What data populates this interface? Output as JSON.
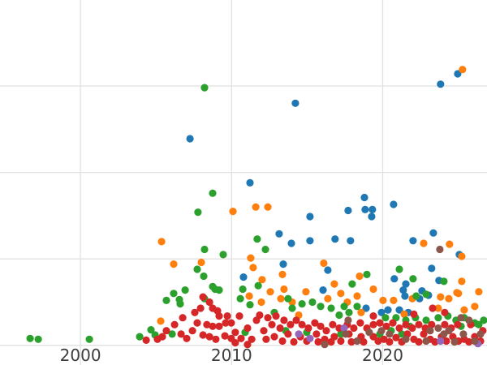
{
  "figure": {
    "background_color": "#ffffff",
    "gridline_color": "#e1e1e1",
    "tick_label_color": "#3d3d3d"
  },
  "chart_data": {
    "type": "scatter",
    "title": "",
    "xlabel": "",
    "ylabel": "",
    "x_ticks": [
      2000,
      2010,
      2020
    ],
    "x_tick_labels": [
      "2000",
      "2010",
      "2020"
    ],
    "y_ticks": [
      0,
      1,
      2,
      3
    ],
    "y_tick_labels": [],
    "y_axis_note": "y tick labels not visible (cropped outside view); values in gridline units",
    "xlim": [
      1994.68,
      2026.9
    ],
    "ylim": [
      -0.227,
      3.994
    ],
    "grid": true,
    "legend_position": "none",
    "marker_radius_px": 4.6,
    "series": [
      {
        "name": "series-blue",
        "color": "#1f77b4",
        "points": [
          [
            2007.25,
            2.39
          ],
          [
            2014.22,
            2.8
          ],
          [
            2023.83,
            3.02
          ],
          [
            2024.96,
            3.14
          ],
          [
            2011.22,
            1.88
          ],
          [
            2015.19,
            1.49
          ],
          [
            2013.15,
            1.29
          ],
          [
            2018.79,
            1.71
          ],
          [
            2017.71,
            1.56
          ],
          [
            2018.84,
            1.57
          ],
          [
            2019.32,
            1.57
          ],
          [
            2019.27,
            1.49
          ],
          [
            2020.72,
            1.63
          ],
          [
            2023.35,
            1.3
          ],
          [
            2013.96,
            1.18
          ],
          [
            2015.19,
            1.21
          ],
          [
            2016.85,
            1.23
          ],
          [
            2017.87,
            1.21
          ],
          [
            2022.01,
            1.21
          ],
          [
            2025.07,
            1.05
          ],
          [
            2023.24,
            0.89
          ],
          [
            2020.77,
            0.77
          ],
          [
            2023.72,
            0.75
          ],
          [
            2021.36,
            0.64
          ],
          [
            2022.6,
            0.63
          ],
          [
            2013.42,
            0.94
          ],
          [
            2016.37,
            0.87
          ],
          [
            2010.79,
            0.79
          ],
          [
            2021.53,
            0.71
          ],
          [
            2016.05,
            0.64
          ],
          [
            2018.9,
            0.43
          ],
          [
            2019.92,
            0.38
          ],
          [
            2020.35,
            0.41
          ],
          [
            2021.1,
            0.41
          ],
          [
            2021.69,
            0.38
          ],
          [
            2022.44,
            0.54
          ],
          [
            2023.03,
            0.58
          ],
          [
            2021.47,
            0.57
          ]
        ]
      },
      {
        "name": "series-orange",
        "color": "#ff7f0e",
        "points": [
          [
            2025.28,
            3.19
          ],
          [
            2010.09,
            1.55
          ],
          [
            2005.37,
            1.2
          ],
          [
            2011.6,
            1.6
          ],
          [
            2012.4,
            1.6
          ],
          [
            2006.17,
            0.94
          ],
          [
            2008.0,
            0.96
          ],
          [
            2024.42,
            1.17
          ],
          [
            2025.23,
            1.03
          ],
          [
            2022.71,
            1.18
          ],
          [
            2011.27,
            1.01
          ],
          [
            2011.43,
            0.9
          ],
          [
            2012.02,
            0.76
          ],
          [
            2013.37,
            0.82
          ],
          [
            2016.1,
            0.95
          ],
          [
            2016.8,
            0.71
          ],
          [
            2018.47,
            0.8
          ],
          [
            2025.23,
            0.74
          ],
          [
            2024.91,
            0.61
          ],
          [
            2026.36,
            0.62
          ],
          [
            2012.56,
            0.62
          ],
          [
            2013.47,
            0.65
          ],
          [
            2014.92,
            0.62
          ],
          [
            2017.23,
            0.6
          ],
          [
            2018.31,
            0.57
          ],
          [
            2011.97,
            0.5
          ],
          [
            2013.26,
            0.54
          ],
          [
            2014.01,
            0.5
          ],
          [
            2016.37,
            0.54
          ],
          [
            2017.66,
            0.5
          ],
          [
            2011.17,
            0.57
          ],
          [
            2005.31,
            0.28
          ],
          [
            2019.38,
            0.65
          ],
          [
            2020.02,
            0.52
          ],
          [
            2020.72,
            0.52
          ],
          [
            2021.96,
            0.54
          ],
          [
            2024.37,
            0.54
          ],
          [
            2025.01,
            0.6
          ],
          [
            2023.83,
            0.56
          ],
          [
            2023.67,
            0.43
          ],
          [
            2025.39,
            0.41
          ],
          [
            2026.09,
            0.45
          ],
          [
            2014.44,
            0.35
          ],
          [
            2018.57,
            0.38
          ],
          [
            2021.42,
            0.36
          ]
        ]
      },
      {
        "name": "series-green",
        "color": "#2ca02c",
        "points": [
          [
            1996.67,
            0.08
          ],
          [
            1997.21,
            0.07
          ],
          [
            2000.59,
            0.07
          ],
          [
            2008.21,
            2.98
          ],
          [
            2008.75,
            1.76
          ],
          [
            2007.78,
            1.54
          ],
          [
            2008.21,
            1.11
          ],
          [
            2009.45,
            1.05
          ],
          [
            2007.73,
            0.88
          ],
          [
            2008.16,
            0.8
          ],
          [
            2011.7,
            1.23
          ],
          [
            2012.24,
            1.11
          ],
          [
            2011.76,
            0.69
          ],
          [
            2017.98,
            0.71
          ],
          [
            2018.95,
            0.82
          ],
          [
            2021.1,
            0.88
          ],
          [
            2022.01,
            0.77
          ],
          [
            2024.05,
            0.74
          ],
          [
            2022.87,
            0.59
          ],
          [
            2022.22,
            0.57
          ],
          [
            2006.93,
            0.64
          ],
          [
            2008.91,
            0.65
          ],
          [
            2010.74,
            0.65
          ],
          [
            2006.17,
            0.6
          ],
          [
            2005.69,
            0.52
          ],
          [
            2006.55,
            0.53
          ],
          [
            2006.6,
            0.48
          ],
          [
            2008.21,
            0.54
          ],
          [
            2010.58,
            0.54
          ],
          [
            2011.22,
            0.47
          ],
          [
            2013.74,
            0.54
          ],
          [
            2014.66,
            0.48
          ],
          [
            2015.35,
            0.5
          ],
          [
            2015.89,
            0.45
          ],
          [
            2016.59,
            0.43
          ],
          [
            2017.12,
            0.35
          ],
          [
            2017.77,
            0.38
          ],
          [
            2018.31,
            0.45
          ],
          [
            2017.45,
            0.45
          ],
          [
            2020.18,
            0.32
          ],
          [
            2020.88,
            0.32
          ],
          [
            2021.53,
            0.29
          ],
          [
            2022.17,
            0.32
          ],
          [
            2022.87,
            0.29
          ],
          [
            2023.67,
            0.32
          ],
          [
            2024.31,
            0.34
          ],
          [
            2024.85,
            0.29
          ],
          [
            2025.39,
            0.32
          ],
          [
            2004.67,
            0.18
          ],
          [
            2004.94,
            0.12
          ],
          [
            2006.07,
            0.13
          ],
          [
            2003.92,
            0.1
          ],
          [
            2010.9,
            0.15
          ],
          [
            2026.68,
            0.29
          ],
          [
            2019.81,
            0.13
          ],
          [
            2020.56,
            0.17
          ],
          [
            2021.26,
            0.13
          ],
          [
            2012.83,
            0.38
          ],
          [
            2014.01,
            0.43
          ],
          [
            2017.23,
            0.13
          ],
          [
            2014.98,
            0.15
          ],
          [
            2013.58,
            0.17
          ],
          [
            2026.09,
            0.26
          ],
          [
            2008.75,
            0.68
          ],
          [
            2009.18,
            0.64
          ],
          [
            2021.8,
            0.22
          ],
          [
            2025.18,
            0.22
          ],
          [
            2026.36,
            0.24
          ]
        ]
      },
      {
        "name": "series-red",
        "color": "#d62728",
        "points": [
          [
            2008.11,
            0.56
          ],
          [
            2008.54,
            0.5
          ],
          [
            2007.95,
            0.43
          ],
          [
            2008.75,
            0.43
          ],
          [
            2007.57,
            0.38
          ],
          [
            2009.07,
            0.4
          ],
          [
            2009.18,
            0.34
          ],
          [
            2009.72,
            0.34
          ],
          [
            2010.52,
            0.34
          ],
          [
            2007.73,
            0.26
          ],
          [
            2006.23,
            0.24
          ],
          [
            2008.37,
            0.24
          ],
          [
            2008.75,
            0.22
          ],
          [
            2009.18,
            0.22
          ],
          [
            2009.61,
            0.26
          ],
          [
            2009.98,
            0.26
          ],
          [
            2007.41,
            0.17
          ],
          [
            2008.11,
            0.12
          ],
          [
            2005.1,
            0.07
          ],
          [
            2004.35,
            0.06
          ],
          [
            2006.66,
            0.13
          ],
          [
            2007.03,
            0.08
          ],
          [
            2008.54,
            0.1
          ],
          [
            2008.96,
            0.07
          ],
          [
            2009.56,
            0.11
          ],
          [
            2009.98,
            0.08
          ],
          [
            2010.25,
            0.15
          ],
          [
            2010.63,
            0.08
          ],
          [
            2011.06,
            0.2
          ],
          [
            2011.33,
            0.07
          ],
          [
            2010.25,
            0.03
          ],
          [
            2011.06,
            0.01
          ],
          [
            2011.86,
            0.35
          ],
          [
            2012.4,
            0.32
          ],
          [
            2012.94,
            0.34
          ],
          [
            2013.47,
            0.29
          ],
          [
            2012.67,
            0.24
          ],
          [
            2013.21,
            0.2
          ],
          [
            2013.9,
            0.24
          ],
          [
            2014.28,
            0.29
          ],
          [
            2014.66,
            0.24
          ],
          [
            2015.08,
            0.2
          ],
          [
            2015.51,
            0.26
          ],
          [
            2015.89,
            0.22
          ],
          [
            2016.27,
            0.17
          ],
          [
            2016.69,
            0.24
          ],
          [
            2017.12,
            0.2
          ],
          [
            2017.66,
            0.24
          ],
          [
            2018.09,
            0.2
          ],
          [
            2018.52,
            0.26
          ],
          [
            2018.95,
            0.2
          ],
          [
            2011.65,
            0.29
          ],
          [
            2012.13,
            0.17
          ],
          [
            2013.74,
            0.13
          ],
          [
            2014.55,
            0.1
          ],
          [
            2015.62,
            0.13
          ],
          [
            2016.16,
            0.07
          ],
          [
            2016.8,
            0.1
          ],
          [
            2017.77,
            0.13
          ],
          [
            2018.57,
            0.1
          ],
          [
            2012.83,
            0.1
          ],
          [
            2012.29,
            0.07
          ],
          [
            2013.37,
            0.05
          ],
          [
            2014.12,
            0.04
          ],
          [
            2014.98,
            0.05
          ],
          [
            2015.73,
            0.04
          ],
          [
            2016.59,
            0.04
          ],
          [
            2017.23,
            0.05
          ],
          [
            2017.93,
            0.04
          ],
          [
            2018.74,
            0.04
          ],
          [
            2023.3,
            0.43
          ],
          [
            2019.38,
            0.1
          ],
          [
            2019.7,
            0.05
          ],
          [
            2020.08,
            0.07
          ],
          [
            2020.45,
            0.04
          ],
          [
            2020.88,
            0.09
          ],
          [
            2021.26,
            0.04
          ],
          [
            2021.63,
            0.13
          ],
          [
            2022.06,
            0.07
          ],
          [
            2022.39,
            0.04
          ],
          [
            2022.71,
            0.13
          ],
          [
            2023.14,
            0.07
          ],
          [
            2023.46,
            0.04
          ],
          [
            2023.89,
            0.1
          ],
          [
            2024.21,
            0.05
          ],
          [
            2024.64,
            0.1
          ],
          [
            2025.01,
            0.05
          ],
          [
            2025.39,
            0.07
          ],
          [
            2025.71,
            0.04
          ],
          [
            2026.09,
            0.1
          ],
          [
            2026.47,
            0.05
          ],
          [
            2019.38,
            0.24
          ],
          [
            2019.81,
            0.26
          ],
          [
            2020.24,
            0.22
          ],
          [
            2020.67,
            0.26
          ],
          [
            2021.1,
            0.2
          ],
          [
            2021.53,
            0.24
          ],
          [
            2021.96,
            0.2
          ],
          [
            2022.39,
            0.24
          ],
          [
            2022.82,
            0.2
          ],
          [
            2023.24,
            0.24
          ],
          [
            2024.1,
            0.24
          ],
          [
            2024.53,
            0.2
          ],
          [
            2024.96,
            0.24
          ],
          [
            2025.82,
            0.24
          ],
          [
            2026.62,
            0.17
          ],
          [
            2022.06,
            0.36
          ],
          [
            2024.1,
            0.38
          ],
          [
            2019.38,
            0.34
          ],
          [
            2006.77,
            0.32
          ],
          [
            2005.69,
            0.17
          ],
          [
            2005.42,
            0.1
          ]
        ]
      },
      {
        "name": "series-purple",
        "color": "#9467bd",
        "points": [
          [
            2014.44,
            0.13
          ],
          [
            2015.19,
            0.08
          ],
          [
            2017.45,
            0.2
          ],
          [
            2023.83,
            0.05
          ],
          [
            2026.3,
            0.02
          ]
        ]
      },
      {
        "name": "series-brown",
        "color": "#8c564b",
        "points": [
          [
            2023.78,
            1.11
          ],
          [
            2017.71,
            0.29
          ],
          [
            2017.55,
            0.13
          ],
          [
            2019.11,
            0.15
          ],
          [
            2016.16,
            0.01
          ],
          [
            2018.31,
            0.05
          ],
          [
            2025.18,
            0.32
          ],
          [
            2025.71,
            0.29
          ],
          [
            2023.14,
            0.17
          ],
          [
            2024.05,
            0.13
          ],
          [
            2024.37,
            0.17
          ],
          [
            2025.34,
            0.13
          ],
          [
            2020.45,
            0.13
          ],
          [
            2019.92,
            0.17
          ],
          [
            2021.53,
            0.07
          ],
          [
            2022.87,
            0.05
          ],
          [
            2026.09,
            0.05
          ],
          [
            2024.75,
            0.04
          ],
          [
            2026.47,
            0.13
          ],
          [
            2023.67,
            0.2
          ]
        ]
      }
    ]
  }
}
